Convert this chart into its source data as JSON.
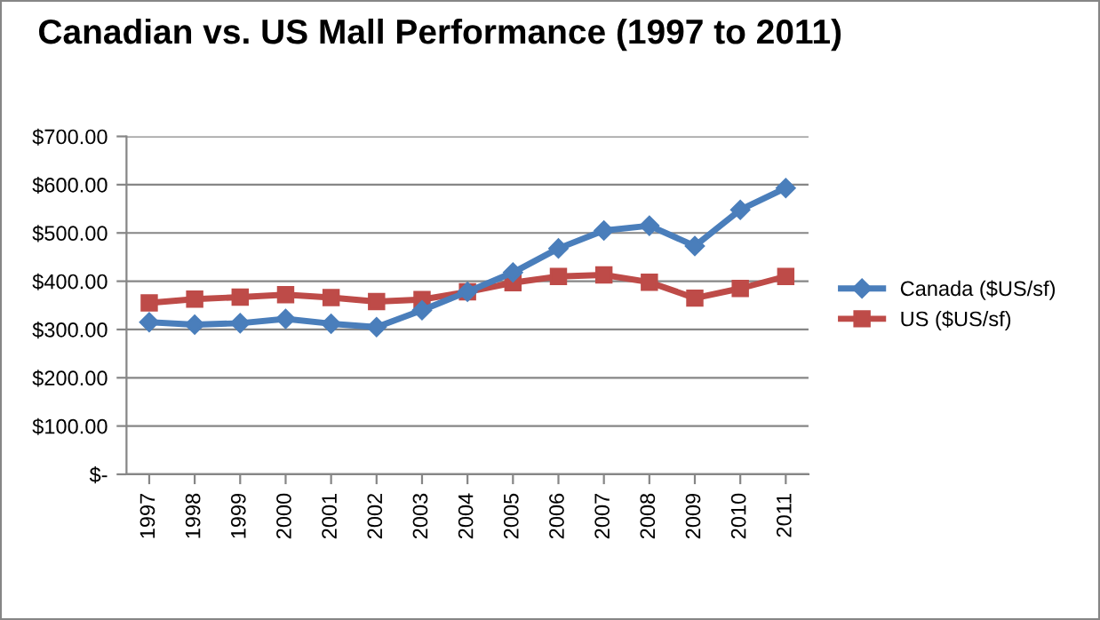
{
  "chart_data": {
    "type": "line",
    "title": "Canadian vs. US Mall Performance (1997 to 2011)",
    "categories": [
      "1997",
      "1998",
      "1999",
      "2000",
      "2001",
      "2002",
      "2003",
      "2004",
      "2005",
      "2006",
      "2007",
      "2008",
      "2009",
      "2010",
      "2011"
    ],
    "series": [
      {
        "name": "Canada ($US/sf)",
        "color": "#4a7ebb",
        "marker": "diamond",
        "values": [
          315,
          310,
          313,
          322,
          312,
          305,
          340,
          378,
          418,
          468,
          505,
          515,
          473,
          548,
          593
        ]
      },
      {
        "name": "US ($US/sf)",
        "color": "#be4b48",
        "marker": "square",
        "values": [
          355,
          363,
          367,
          372,
          366,
          358,
          362,
          378,
          397,
          410,
          413,
          398,
          365,
          385,
          410
        ]
      }
    ],
    "ylim": [
      0,
      700
    ],
    "yticks": [
      {
        "value": 0,
        "label": "$-"
      },
      {
        "value": 100,
        "label": "$100.00"
      },
      {
        "value": 200,
        "label": "$200.00"
      },
      {
        "value": 300,
        "label": "$300.00"
      },
      {
        "value": 400,
        "label": "$400.00"
      },
      {
        "value": 500,
        "label": "$500.00"
      },
      {
        "value": 600,
        "label": "$600.00"
      },
      {
        "value": 700,
        "label": "$700.00"
      }
    ],
    "grid": "y",
    "legend": "right",
    "line_style": "solid"
  }
}
